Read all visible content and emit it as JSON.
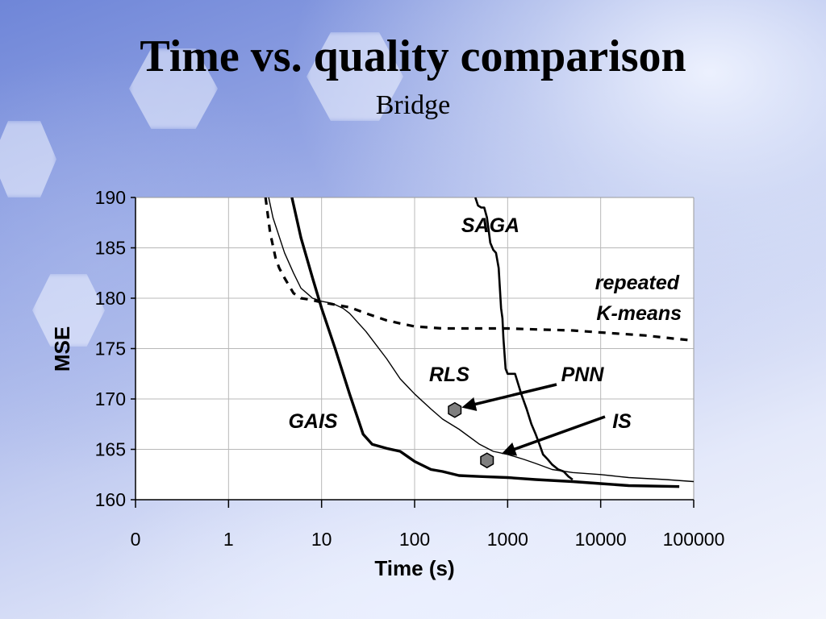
{
  "title": "Time vs. quality comparison",
  "subtitle": "Bridge",
  "chart_data": {
    "type": "line",
    "title": "Time vs. quality comparison",
    "subtitle": "Bridge",
    "xlabel": "Time (s)",
    "ylabel": "MSE",
    "x_scale": "log",
    "x_tick_labels": [
      "0",
      "1",
      "10",
      "100",
      "1000",
      "10000",
      "100000"
    ],
    "y_ticks": [
      160,
      165,
      170,
      175,
      180,
      185,
      190
    ],
    "ylim": [
      160,
      190
    ],
    "grid": true,
    "series": [
      {
        "name": "repeated K-means",
        "style": "dashed",
        "x": [
          2.5,
          2.8,
          3.2,
          3.5,
          4,
          5,
          6,
          7,
          8,
          10,
          15,
          20,
          30,
          50,
          70,
          100,
          200,
          500,
          1000,
          2000,
          5000,
          10000,
          30000,
          60000,
          100000
        ],
        "y": [
          190,
          186.5,
          184,
          183,
          182,
          180.5,
          180,
          179.9,
          179.8,
          179.6,
          179.3,
          179.1,
          178.5,
          177.8,
          177.5,
          177.2,
          177,
          177,
          177,
          176.9,
          176.8,
          176.6,
          176.3,
          176,
          175.8
        ]
      },
      {
        "name": "GAIS",
        "style": "solid-thick",
        "x": [
          4.8,
          6,
          8,
          10,
          14,
          20,
          28,
          35,
          50,
          70,
          100,
          150,
          200,
          300,
          500,
          1000,
          2000,
          5000,
          10000,
          20000,
          70000
        ],
        "y": [
          190,
          186,
          182,
          179,
          175,
          170.5,
          166.5,
          165.5,
          165.1,
          164.8,
          163.8,
          163,
          162.8,
          162.4,
          162.3,
          162.2,
          162,
          161.8,
          161.6,
          161.4,
          161.3
        ]
      },
      {
        "name": "RLS",
        "style": "solid-thin",
        "x": [
          2.7,
          3,
          4,
          5,
          6,
          8,
          10,
          13,
          17,
          20,
          30,
          50,
          70,
          100,
          150,
          200,
          300,
          500,
          700,
          1000,
          1500,
          2000,
          3000,
          5000,
          10000,
          20000,
          50000,
          100000
        ],
        "y": [
          190,
          188,
          184.5,
          182.5,
          181,
          180,
          179.7,
          179.5,
          179,
          178.5,
          176.7,
          174,
          172,
          170.5,
          169,
          168,
          167,
          165.5,
          164.8,
          164.5,
          164,
          163.6,
          163,
          162.7,
          162.5,
          162.2,
          162,
          161.8
        ]
      },
      {
        "name": "SAGA",
        "style": "solid-medium",
        "x": [
          450,
          480,
          520,
          560,
          600,
          620,
          650,
          700,
          750,
          800,
          850,
          880,
          900,
          950,
          1000,
          1050,
          1100,
          1200,
          1400,
          1600,
          1800,
          2000,
          2200,
          2400,
          2700,
          3000,
          3500,
          4000,
          4500,
          5000
        ],
        "y": [
          190,
          189.2,
          189,
          189,
          188,
          187,
          185.5,
          184.8,
          184.5,
          183,
          179,
          178,
          176,
          173,
          172.5,
          172.5,
          172.5,
          172.5,
          170.5,
          169,
          167.5,
          166.5,
          165.5,
          164.5,
          164,
          163.5,
          163,
          162.8,
          162.3,
          162
        ]
      }
    ],
    "points": [
      {
        "name": "PNN",
        "x": 270,
        "y": 168.9
      },
      {
        "name": "IS",
        "x": 600,
        "y": 163.9
      }
    ],
    "annotations": [
      "SAGA",
      "repeated",
      "K-means",
      "RLS",
      "PNN",
      "GAIS",
      "IS"
    ],
    "colors": {
      "lines": "#000000",
      "grid": "#b8b8b8",
      "marker_fill": "#7f7f7f",
      "plot_bg": "#ffffff"
    }
  }
}
